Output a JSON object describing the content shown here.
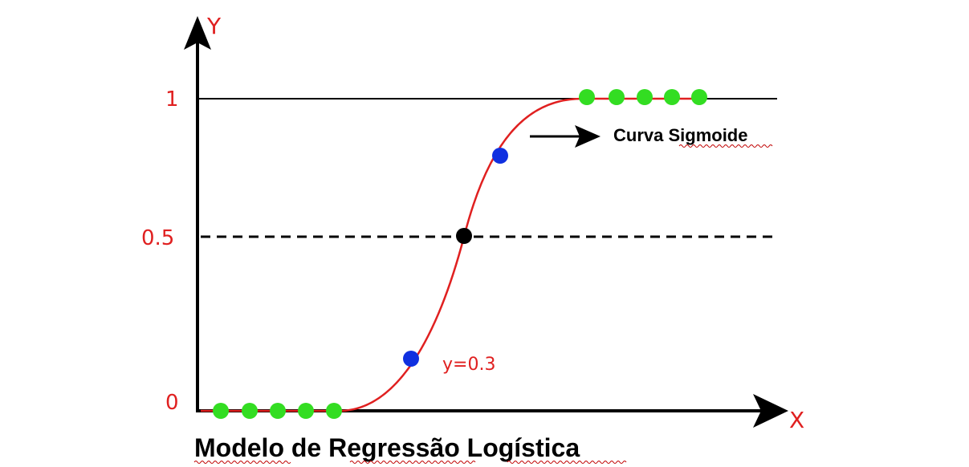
{
  "title": "Modelo de Regressão Logística",
  "axes": {
    "x_label": "X",
    "y_label": "Y",
    "y_ticks": [
      "1",
      "0.5",
      "0"
    ]
  },
  "curve": {
    "label": "Curva Sigmoide",
    "point_annotation": "y=0.3"
  },
  "colors": {
    "axis": "#000000",
    "tick_labels": "#e02020",
    "curve": "#e02020",
    "class_points": "#33dd22",
    "sample_points": "#1030e0",
    "threshold_point": "#000000"
  }
}
